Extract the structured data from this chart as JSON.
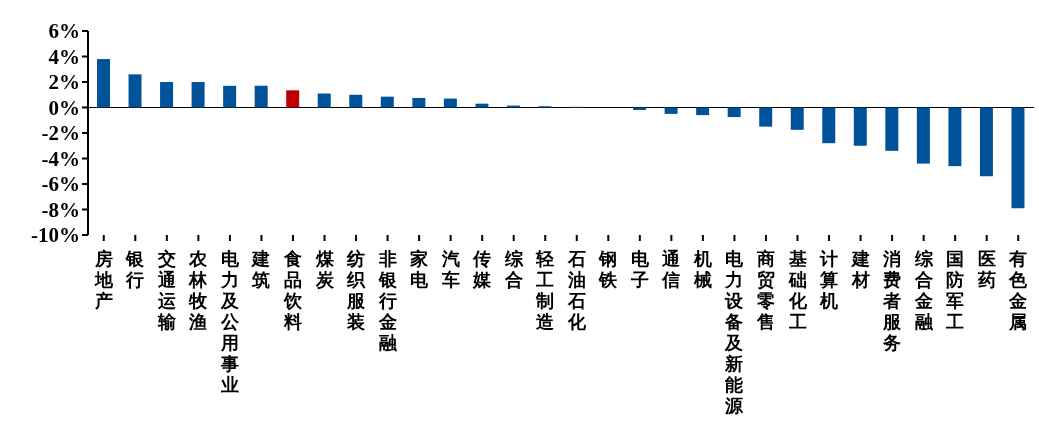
{
  "chart_data": {
    "type": "bar",
    "categories": [
      "房地产",
      "银行",
      "交通运输",
      "农林牧渔",
      "电力及公用事业",
      "建筑",
      "食品饮料",
      "煤炭",
      "纺织服装",
      "非银行金融",
      "家电",
      "汽车",
      "传媒",
      "综合",
      "轻工制造",
      "石油石化",
      "钢铁",
      "电子",
      "通信",
      "机械",
      "电力设备及新能源",
      "商贸零售",
      "基础化工",
      "计算机",
      "建材",
      "消费者服务",
      "综合金融",
      "国防军工",
      "医药",
      "有色金属"
    ],
    "values": [
      3.8,
      2.6,
      2.0,
      2.0,
      1.7,
      1.7,
      1.35,
      1.1,
      1.0,
      0.85,
      0.75,
      0.7,
      0.3,
      0.15,
      0.1,
      0.05,
      0,
      -0.2,
      -0.5,
      -0.6,
      -0.75,
      -1.5,
      -1.75,
      -2.8,
      -3.0,
      -3.4,
      -4.4,
      -4.6,
      -5.4,
      -7.9
    ],
    "colors": [
      "#00529b",
      "#00529b",
      "#00529b",
      "#00529b",
      "#00529b",
      "#00529b",
      "#c00000",
      "#00529b",
      "#00529b",
      "#00529b",
      "#00529b",
      "#00529b",
      "#00529b",
      "#00529b",
      "#00529b",
      "#00529b",
      "#00529b",
      "#00529b",
      "#00529b",
      "#00529b",
      "#00529b",
      "#00529b",
      "#00529b",
      "#00529b",
      "#00529b",
      "#00529b",
      "#00529b",
      "#00529b",
      "#00529b",
      "#00529b"
    ],
    "ylim": [
      -10,
      6
    ],
    "yticks": [
      {
        "value": -10,
        "label": "-10%"
      },
      {
        "value": -8,
        "label": "-8%"
      },
      {
        "value": -6,
        "label": "-6%"
      },
      {
        "value": -4,
        "label": "-4%"
      },
      {
        "value": -2,
        "label": "-2%"
      },
      {
        "value": 0,
        "label": "0%"
      },
      {
        "value": 2,
        "label": "2%"
      },
      {
        "value": 4,
        "label": "4%"
      },
      {
        "value": 6,
        "label": "6%"
      }
    ],
    "ref_lines": [
      {
        "axis": "y",
        "value": 0,
        "color": "#000000"
      }
    ],
    "grid": false,
    "legend": false
  }
}
